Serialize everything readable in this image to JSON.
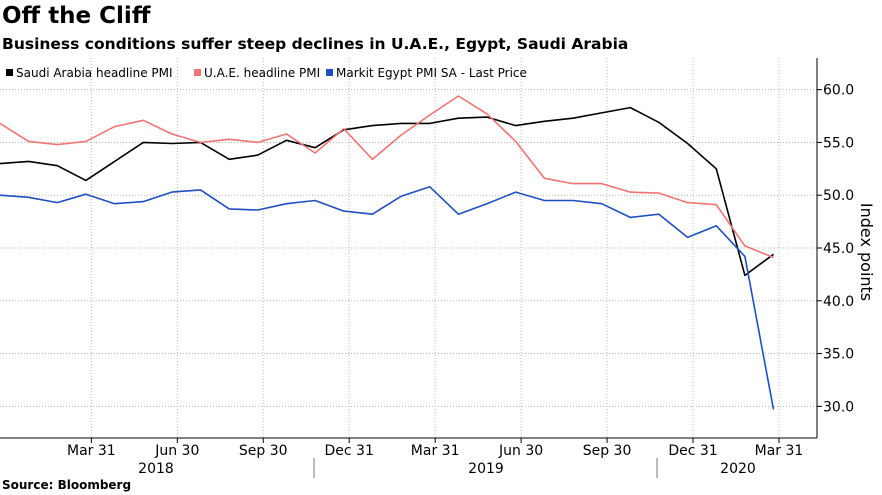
{
  "chart_data": {
    "type": "line",
    "title": "Off the Cliff",
    "subtitle": "Business conditions suffer steep declines in U.A.E., Egypt, Saudi Arabia",
    "ylabel": "Index points",
    "source": "Source: Bloomberg",
    "ylim": [
      27.0,
      63.0
    ],
    "yticks": [
      "60.0",
      "55.0",
      "50.0",
      "45.0",
      "40.0",
      "35.0",
      "30.0"
    ],
    "grid": true,
    "legend_position": "top-left",
    "x_tick_labels": [
      "Mar 31",
      "Jun 30",
      "Sep 30",
      "Dec 31",
      "Mar 31",
      "Jun 30",
      "Sep 30",
      "Dec 31",
      "Mar 31"
    ],
    "x_year_labels": [
      "2018",
      "2019",
      "2020"
    ],
    "x": [
      "2018-01",
      "2018-02",
      "2018-03",
      "2018-04",
      "2018-05",
      "2018-06",
      "2018-07",
      "2018-08",
      "2018-09",
      "2018-10",
      "2018-11",
      "2018-12",
      "2019-01",
      "2019-02",
      "2019-03",
      "2019-04",
      "2019-05",
      "2019-06",
      "2019-07",
      "2019-08",
      "2019-09",
      "2019-10",
      "2019-11",
      "2019-12",
      "2020-01",
      "2020-02",
      "2020-03",
      "2020-04"
    ],
    "series": [
      {
        "name": "Saudi Arabia headline PMI",
        "color": "#000000",
        "values": [
          53.0,
          53.2,
          52.8,
          51.4,
          53.2,
          55.0,
          54.9,
          55.0,
          53.4,
          53.8,
          55.2,
          54.5,
          56.2,
          56.6,
          56.8,
          56.8,
          57.3,
          57.4,
          56.6,
          57.0,
          57.3,
          57.8,
          58.3,
          56.9,
          54.9,
          52.5,
          42.4,
          44.4
        ]
      },
      {
        "name": "U.A.E. headline PMI",
        "color": "#f07474",
        "values": [
          56.8,
          55.1,
          54.8,
          55.1,
          56.5,
          57.1,
          55.8,
          55.0,
          55.3,
          55.0,
          55.8,
          54.0,
          56.3,
          53.4,
          55.7,
          57.6,
          59.4,
          57.7,
          55.1,
          51.6,
          51.1,
          51.1,
          50.3,
          50.2,
          49.3,
          49.1,
          45.2,
          44.1
        ]
      },
      {
        "name": "Markit Egypt PMI SA - Last Price",
        "color": "#1f4fbf",
        "values": [
          50.0,
          49.8,
          49.3,
          50.1,
          49.2,
          49.4,
          50.3,
          50.5,
          48.7,
          48.6,
          49.2,
          49.5,
          48.5,
          48.2,
          49.9,
          50.8,
          48.2,
          49.2,
          50.3,
          49.5,
          49.5,
          49.2,
          47.9,
          48.2,
          46.0,
          47.1,
          44.2,
          29.7
        ]
      }
    ]
  }
}
